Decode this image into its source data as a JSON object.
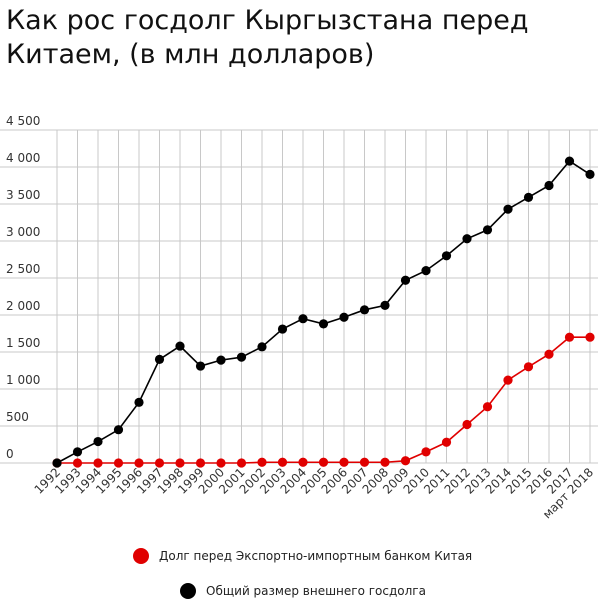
{
  "title": "Как рос госдолг Кыргызстана перед Китаем, (в  млн долларов)",
  "chart_data": {
    "type": "line",
    "title": "Как рос госдолг Кыргызстана перед Китаем, (в  млн долларов)",
    "xlabel": "",
    "ylabel": "",
    "x": [
      "1992",
      "1993",
      "1994",
      "1995",
      "1996",
      "1997",
      "1998",
      "1999",
      "2000",
      "2001",
      "2002",
      "2003",
      "2004",
      "2005",
      "2006",
      "2007",
      "2008",
      "2009",
      "2010",
      "2011",
      "2012",
      "2013",
      "2014",
      "2015",
      "2016",
      "2017",
      "март 2018"
    ],
    "ylim": [
      0,
      4500
    ],
    "yticks": [
      0,
      500,
      1000,
      1500,
      2000,
      2500,
      3000,
      3500,
      4000,
      4500
    ],
    "ytick_labels": [
      "0",
      "500",
      "1 000",
      "1 500",
      "2 000",
      "2 500",
      "3 000",
      "3 500",
      "4 000",
      "4 500"
    ],
    "grid": true,
    "legend_position": "bottom",
    "series": [
      {
        "name": "Долг перед Экспортно-импортным банком Китая",
        "color": "#e00000",
        "values": [
          0,
          0,
          0,
          0,
          0,
          0,
          0,
          0,
          0,
          0,
          10,
          10,
          10,
          10,
          10,
          10,
          10,
          30,
          150,
          280,
          520,
          760,
          1120,
          1300,
          1470,
          1700,
          1700
        ]
      },
      {
        "name": "Общий размер внешнего госдолга",
        "color": "#000000",
        "values": [
          0,
          150,
          290,
          450,
          820,
          1400,
          1580,
          1310,
          1390,
          1430,
          1570,
          1810,
          1950,
          1880,
          1970,
          2070,
          2130,
          2470,
          2600,
          2800,
          3030,
          3150,
          3430,
          3590,
          3750,
          4080,
          3900
        ]
      }
    ]
  }
}
